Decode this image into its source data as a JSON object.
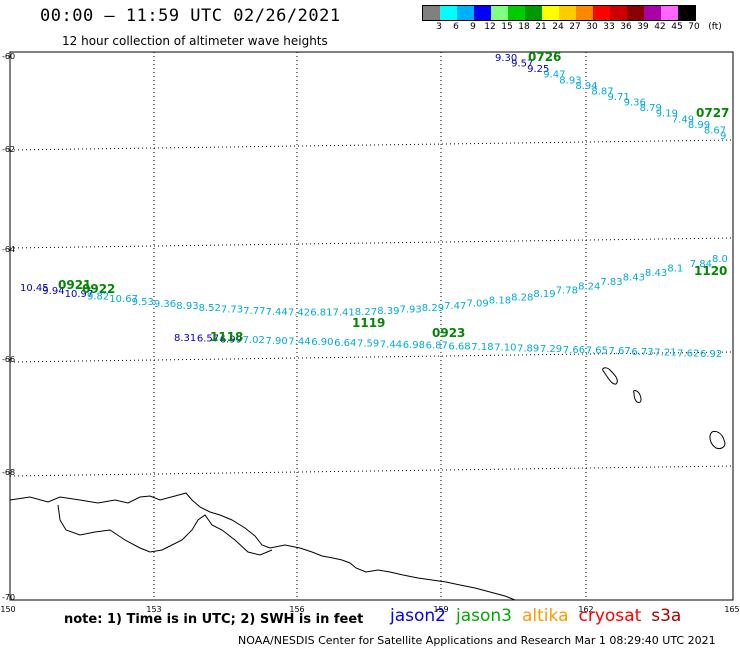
{
  "title": "00:00 – 11:59 UTC 02/26/2021",
  "subtitle": "12 hour collection of altimeter wave heights",
  "colorbar": {
    "colors": [
      "#808080",
      "#00ffff",
      "#00b0ff",
      "#0000ff",
      "#80ff80",
      "#00cc00",
      "#009900",
      "#ffff00",
      "#ffcc00",
      "#ff8800",
      "#ff0000",
      "#cc0000",
      "#880000",
      "#aa00aa",
      "#ff66ff",
      "#000000"
    ],
    "labels": [
      "3",
      "6",
      "9",
      "12",
      "15",
      "18",
      "21",
      "24",
      "27",
      "30",
      "33",
      "36",
      "39",
      "42",
      "45",
      "70",
      "(ft)"
    ]
  },
  "map": {
    "lon_range": [
      150,
      165
    ],
    "lat_range": [
      -70,
      -60
    ],
    "lon_ticks": [
      "150",
      "153",
      "156",
      "159",
      "162",
      "165"
    ],
    "lat_ticks": [
      "-60",
      "-62",
      "-64",
      "-66",
      "-68",
      "-70"
    ],
    "grid": true,
    "projection": "polar-stereographic"
  },
  "observations": {
    "track_a": {
      "color": "#00aadd",
      "labels": [
        "9.30",
        "9.57",
        "9.25",
        "9.47",
        "8.93",
        "8.94",
        "8.87",
        "9.71",
        "9.36",
        "8.79",
        "9.19",
        "7.49",
        "8.99",
        "8.67",
        "9"
      ],
      "time_tags": [
        "0726",
        "0727"
      ]
    },
    "track_b": {
      "color": "#00aadd",
      "labels": [
        "10.45",
        "9.94",
        "10.97",
        "9.82",
        "10.67",
        "9.53",
        "9.36",
        "8.93",
        "8.52",
        "7.73",
        "7.77",
        "7.44",
        "7.42",
        "6.81",
        "7.41",
        "8.27",
        "8.39",
        "7.93",
        "8.29",
        "7.47",
        "7.09",
        "8.18",
        "8.28",
        "8.19",
        "7.78",
        "8.24",
        "7.83",
        "8.43",
        "8.43",
        "8.1",
        "7.84",
        "8.0"
      ],
      "time_tags": [
        "0921",
        "0922",
        "1119",
        "1120"
      ]
    },
    "track_c": {
      "color": "#00aadd",
      "labels": [
        "8.31",
        "6.57",
        "6.99",
        "7.02",
        "7.90",
        "7.44",
        "6.90",
        "6.64",
        "7.59",
        "7.44",
        "6.98",
        "6.87",
        "6.68",
        "7.18",
        "7.10",
        "7.89",
        "7.29",
        "7.66",
        "7.65",
        "7.67",
        "6.73",
        "7.21",
        "7.62",
        "6.92"
      ],
      "time_tags": [
        "1118",
        "0923"
      ]
    }
  },
  "note": "note: 1) Time is in UTC; 2) SWH is in feet",
  "legend": [
    {
      "name": "jason2",
      "color": "#0000ff"
    },
    {
      "name": "jason3",
      "color": "#00aa00"
    },
    {
      "name": "altika",
      "color": "#ff9900"
    },
    {
      "name": "cryosat",
      "color": "#ff0000"
    },
    {
      "name": "s3a",
      "color": "#aa0000"
    }
  ],
  "credit": "NOAA/NESDIS Center for Satellite Applications and Research   Mar  1 08:29:40 UTC 2021"
}
